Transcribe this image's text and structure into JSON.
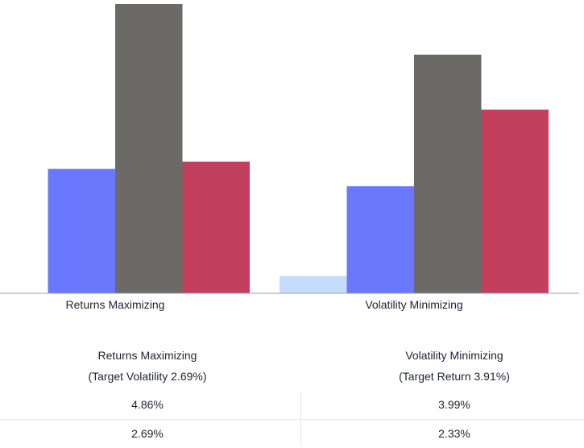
{
  "chart_data": {
    "type": "bar",
    "categories": [
      "Returns Maximizing",
      "Volatility Minimizing"
    ],
    "series": [
      {
        "values": [
          0.0,
          0.6
        ],
        "color": "#c6dcfb"
      },
      {
        "values": [
          4.3,
          3.7
        ],
        "color": "#6978fd"
      },
      {
        "values": [
          10.0,
          8.25
        ],
        "color": "#6c6a67"
      },
      {
        "values": [
          4.55,
          6.35
        ],
        "color": "#c2405e"
      }
    ],
    "ylim": [
      0,
      10
    ],
    "title": "",
    "xlabel": "",
    "ylabel": "",
    "legend": "none",
    "grid": false
  },
  "table": {
    "columns": [
      {
        "title": "Returns Maximizing",
        "subtitle": "(Target Volatility 2.69%)"
      },
      {
        "title": "Volatility Minimizing",
        "subtitle": "(Target Return 3.91%)"
      }
    ],
    "rows": [
      [
        "4.86%",
        "3.99%"
      ],
      [
        "2.69%",
        "2.33%"
      ]
    ]
  }
}
